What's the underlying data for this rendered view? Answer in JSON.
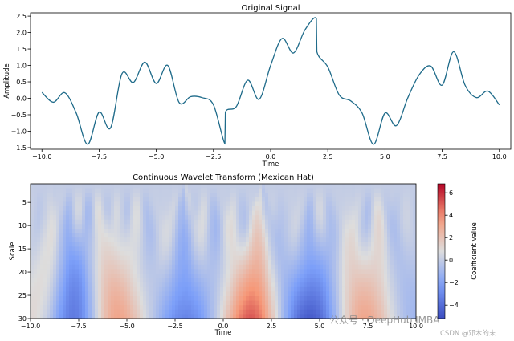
{
  "chart_data": [
    {
      "type": "line",
      "title": "Original Signal",
      "xlabel": "Time",
      "ylabel": "Amplitude",
      "xlim": [
        -10.5,
        10.5
      ],
      "ylim": [
        -1.55,
        2.6
      ],
      "xticks": [
        -10.0,
        -7.5,
        -5.0,
        -2.5,
        0.0,
        2.5,
        5.0,
        7.5,
        10.0
      ],
      "xtick_labels": [
        "−10.0",
        "−7.5",
        "−5.0",
        "−2.5",
        "0.0",
        "2.5",
        "5.0",
        "7.5",
        "10.0"
      ],
      "yticks": [
        -1.5,
        -1.0,
        -0.5,
        0.0,
        0.5,
        1.0,
        1.5,
        2.0,
        2.5
      ],
      "ytick_labels": [
        "−1.5",
        "−1.0",
        "−0.5",
        "0.0",
        "0.5",
        "1.0",
        "1.5",
        "2.0",
        "2.5"
      ],
      "color": "#1f6b8a",
      "x": [
        -10.0,
        -9.5,
        -9.0,
        -8.5,
        -8.0,
        -7.5,
        -7.0,
        -6.5,
        -6.0,
        -5.5,
        -5.0,
        -4.5,
        -4.0,
        -3.5,
        -3.0,
        -2.5,
        -2.0,
        -1.98,
        -1.5,
        -1.0,
        -0.5,
        0.0,
        0.5,
        1.0,
        1.5,
        2.0,
        2.02,
        2.5,
        3.0,
        3.5,
        4.0,
        4.5,
        5.0,
        5.5,
        6.0,
        6.5,
        7.0,
        7.5,
        8.0,
        8.5,
        9.0,
        9.5,
        10.0
      ],
      "y": [
        0.18,
        -0.12,
        0.17,
        -0.45,
        -1.4,
        -0.42,
        -0.9,
        0.75,
        0.48,
        1.1,
        0.45,
        1.0,
        -0.13,
        0.05,
        0.02,
        -0.2,
        -1.38,
        -0.43,
        -0.25,
        0.55,
        -0.03,
        1.0,
        1.82,
        1.38,
        2.08,
        2.43,
        1.42,
        0.95,
        0.1,
        -0.08,
        -0.45,
        -1.4,
        -0.45,
        -0.83,
        0.02,
        0.72,
        0.98,
        0.4,
        1.42,
        0.4,
        0.02,
        0.22,
        -0.2
      ]
    },
    {
      "type": "heatmap",
      "title": "Continuous Wavelet Transform (Mexican Hat)",
      "xlabel": "Time",
      "ylabel": "Scale",
      "xlim": [
        -10.0,
        10.0
      ],
      "ylim": [
        30,
        1
      ],
      "xticks": [
        -10.0,
        -7.5,
        -5.0,
        -2.5,
        0.0,
        2.5,
        5.0,
        7.5,
        10.0
      ],
      "xtick_labels": [
        "−10.0",
        "−7.5",
        "−5.0",
        "−2.5",
        "0.0",
        "2.5",
        "5.0",
        "7.5",
        "10.0"
      ],
      "yticks": [
        5,
        10,
        15,
        20,
        25,
        30
      ],
      "ytick_labels": [
        "5",
        "10",
        "15",
        "20",
        "25",
        "30"
      ],
      "colormap": "coolwarm",
      "colorbar": {
        "label": "Coefficient value",
        "range": [
          -5.2,
          6.8
        ],
        "ticks": [
          -4,
          -2,
          0,
          2,
          4,
          6
        ],
        "tick_labels": [
          "−4",
          "−2",
          "0",
          "2",
          "4",
          "6"
        ]
      }
    }
  ],
  "watermark": {
    "main": "公众号 · DeepHub IMBA",
    "sub": "CSDN @邓木的末"
  }
}
